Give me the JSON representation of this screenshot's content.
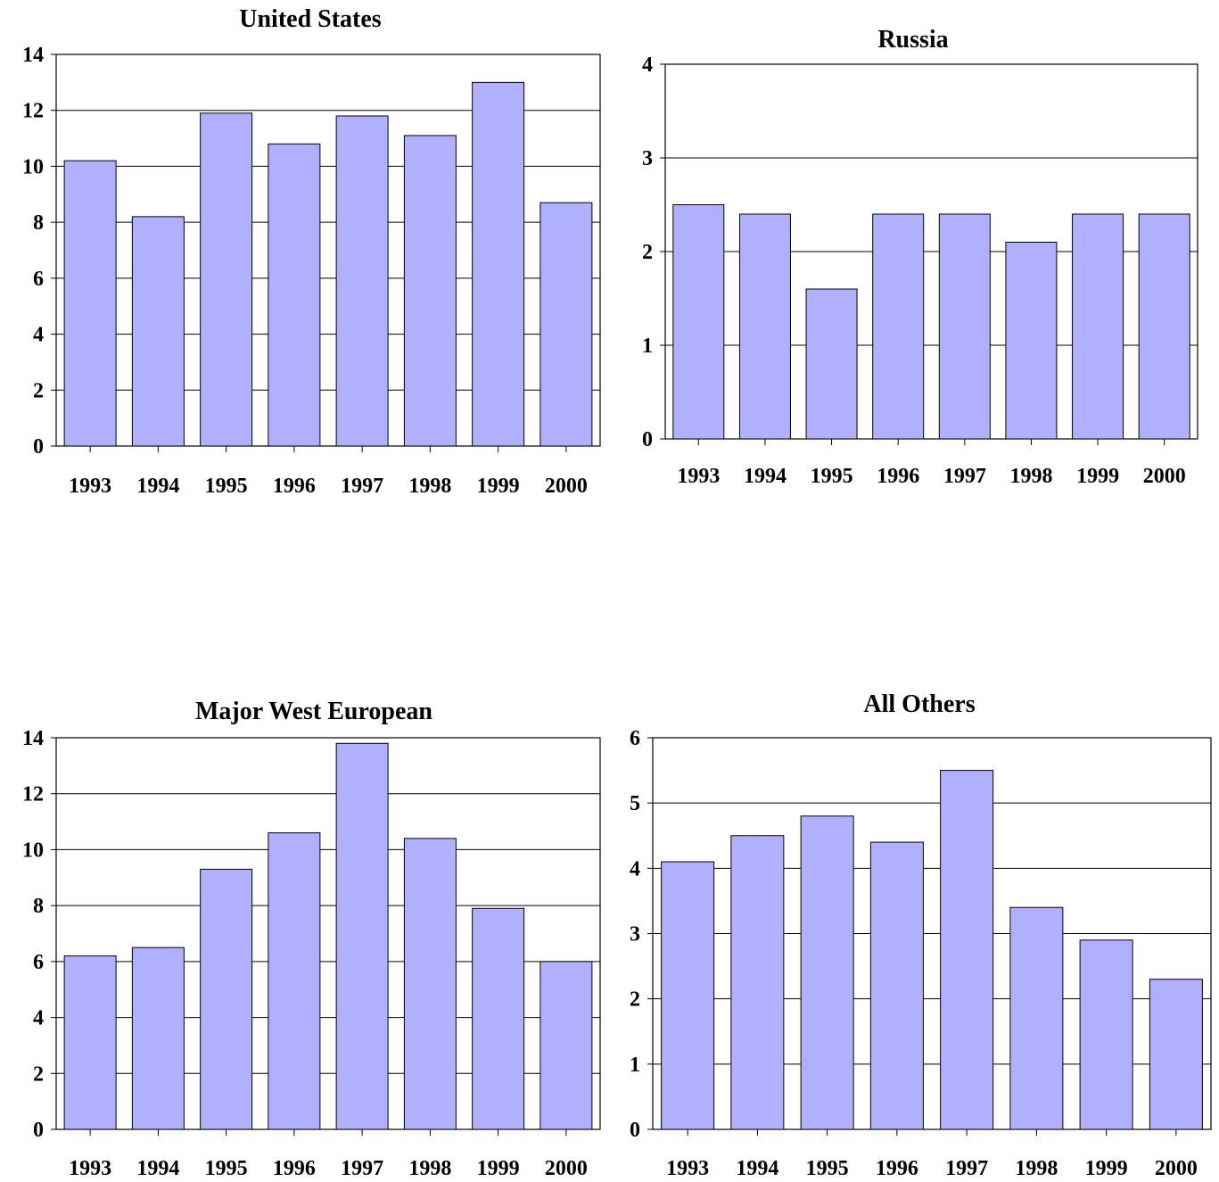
{
  "chart_data": [
    {
      "type": "bar",
      "title": "United States",
      "categories": [
        "1993",
        "1994",
        "1995",
        "1996",
        "1997",
        "1998",
        "1999",
        "2000"
      ],
      "values": [
        10.2,
        8.2,
        11.9,
        10.8,
        11.8,
        11.1,
        13.0,
        8.7
      ],
      "ylim": [
        0,
        14
      ],
      "yticks": [
        0,
        2,
        4,
        6,
        8,
        10,
        12,
        14
      ],
      "xlabel": "",
      "ylabel": "",
      "grid": true,
      "bar_color": "#b0b0ff"
    },
    {
      "type": "bar",
      "title": "Russia",
      "categories": [
        "1993",
        "1994",
        "1995",
        "1996",
        "1997",
        "1998",
        "1999",
        "2000"
      ],
      "values": [
        2.5,
        2.4,
        1.6,
        2.4,
        2.4,
        2.1,
        2.4,
        2.4
      ],
      "ylim": [
        0,
        4
      ],
      "yticks": [
        0,
        1,
        2,
        3,
        4
      ],
      "xlabel": "",
      "ylabel": "",
      "grid": true,
      "bar_color": "#b0b0ff"
    },
    {
      "type": "bar",
      "title": "Major West European",
      "categories": [
        "1993",
        "1994",
        "1995",
        "1996",
        "1997",
        "1998",
        "1999",
        "2000"
      ],
      "values": [
        6.2,
        6.5,
        9.3,
        10.6,
        13.8,
        10.4,
        7.9,
        6.0
      ],
      "ylim": [
        0,
        14
      ],
      "yticks": [
        0,
        2,
        4,
        6,
        8,
        10,
        12,
        14
      ],
      "xlabel": "",
      "ylabel": "",
      "grid": true,
      "bar_color": "#b0b0ff"
    },
    {
      "type": "bar",
      "title": "All Others",
      "categories": [
        "1993",
        "1994",
        "1995",
        "1996",
        "1997",
        "1998",
        "1999",
        "2000"
      ],
      "values": [
        4.1,
        4.5,
        4.8,
        4.4,
        5.5,
        3.4,
        2.9,
        2.3
      ],
      "ylim": [
        0,
        6
      ],
      "yticks": [
        0,
        1,
        2,
        3,
        4,
        5,
        6
      ],
      "xlabel": "",
      "ylabel": "",
      "grid": true,
      "bar_color": "#b0b0ff"
    }
  ]
}
